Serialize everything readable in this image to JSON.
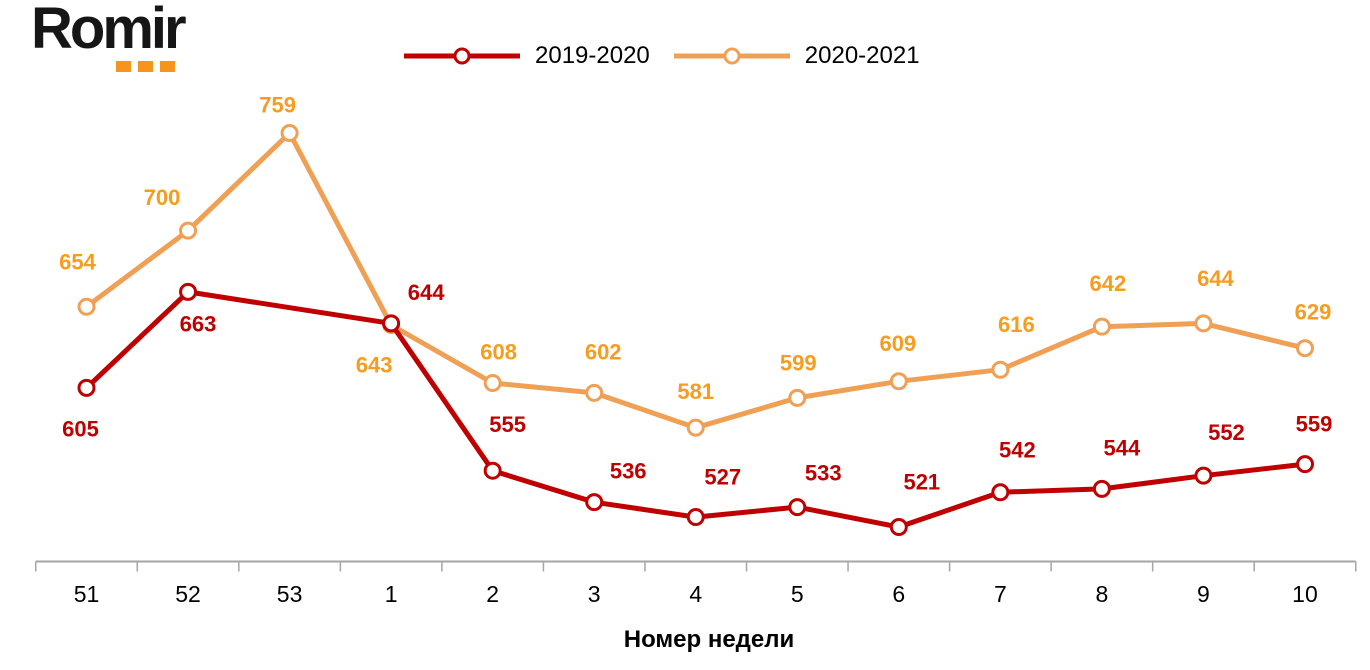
{
  "logo": {
    "text": "Romir",
    "dot_color": "#F7941D"
  },
  "legend": {
    "position": "top-center"
  },
  "axis": {
    "color": "#A6A6A6",
    "tick_label_color": "#000000"
  },
  "chart_data": {
    "type": "line",
    "title": "",
    "xlabel": "Номер недели",
    "ylabel": "",
    "categories": [
      "51",
      "52",
      "53",
      "1",
      "2",
      "3",
      "4",
      "5",
      "6",
      "7",
      "8",
      "9",
      "10"
    ],
    "grid": false,
    "y_axis_visible": false,
    "legend_position": "top-center",
    "series": [
      {
        "name": "2019-2020",
        "color_line": "#C00000",
        "color_label": "#C00000",
        "marker": "circle-white-fill",
        "values": [
          605,
          663,
          null,
          644,
          555,
          536,
          527,
          533,
          521,
          542,
          544,
          552,
          559
        ],
        "label_offsets": [
          [
            -6,
            41
          ],
          [
            10,
            32
          ],
          null,
          [
            35,
            -31
          ],
          [
            15,
            -46
          ],
          [
            34,
            -31
          ],
          [
            27,
            -40
          ],
          [
            26,
            -34
          ],
          [
            23,
            -45
          ],
          [
            17,
            -42
          ],
          [
            20,
            -41
          ],
          [
            23,
            -43
          ],
          [
            9,
            -40
          ]
        ]
      },
      {
        "name": "2020-2021",
        "color_line": "#F0A055",
        "color_label": "#F89C1E",
        "marker": "circle-white-fill",
        "values": [
          654,
          700,
          759,
          643,
          608,
          602,
          581,
          599,
          609,
          616,
          642,
          644,
          629
        ],
        "label_offsets": [
          [
            -9,
            -45
          ],
          [
            -26,
            -33
          ],
          [
            -12,
            -28
          ],
          [
            -17,
            40
          ],
          [
            6,
            -31
          ],
          [
            9,
            -41
          ],
          [
            0,
            -36
          ],
          [
            1,
            -35
          ],
          [
            -1,
            -38
          ],
          [
            16,
            -45
          ],
          [
            6,
            -43
          ],
          [
            12,
            -45
          ],
          [
            8,
            -36
          ]
        ]
      }
    ],
    "layout": {
      "x0": 86.5,
      "dx": 101.54,
      "y_intercept": 1389.5,
      "y_slope": 1.6555,
      "axis_y": 561.5,
      "tick_len": 10,
      "tick_label_y": 602,
      "line_width": 5,
      "marker_radius": 7.5,
      "marker_stroke": 3
    }
  }
}
